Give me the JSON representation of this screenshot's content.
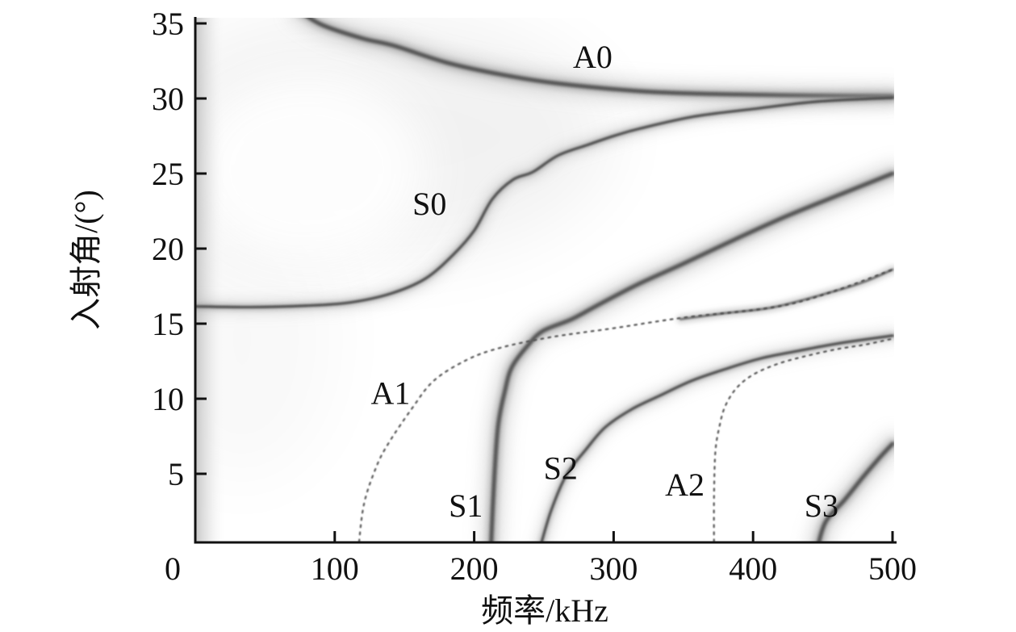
{
  "figure": {
    "background": "#ffffff",
    "ink_color": "#111111"
  },
  "chart_data": {
    "type": "heatmap",
    "subtype": "grayscale reflection-coefficient minima map showing leaky Lamb wave dispersion curves (incidence angle vs frequency)",
    "title": "",
    "xlabel": "频率/kHz",
    "ylabel": "入射角/(°)",
    "xlim": [
      0,
      500
    ],
    "ylim": [
      0,
      35
    ],
    "x_ticks": [
      0,
      100,
      200,
      300,
      400,
      500
    ],
    "y_ticks": [
      5,
      10,
      15,
      20,
      25,
      30,
      35
    ],
    "grid": false,
    "legend": "none (modes annotated inline)",
    "series": [
      {
        "name": "A0",
        "label": "A0",
        "label_pos": [
          285,
          32.8
        ],
        "line": "band-heavy",
        "points": [
          [
            75,
            35.8
          ],
          [
            91,
            34.9
          ],
          [
            120,
            34.0
          ],
          [
            143,
            33.5
          ],
          [
            180,
            32.4
          ],
          [
            219,
            31.6
          ],
          [
            260,
            31.0
          ],
          [
            317,
            30.5
          ],
          [
            370,
            30.3
          ],
          [
            433,
            30.2
          ],
          [
            500,
            30.15
          ]
        ]
      },
      {
        "name": "S0",
        "label": "S0",
        "label_pos": [
          168,
          23.0
        ],
        "line": "band-medium",
        "points": [
          [
            0.5,
            16.15
          ],
          [
            40,
            16.1
          ],
          [
            80,
            16.2
          ],
          [
            110,
            16.4
          ],
          [
            140,
            17.0
          ],
          [
            165,
            18.0
          ],
          [
            185,
            19.6
          ],
          [
            200,
            21.2
          ],
          [
            213,
            23.3
          ],
          [
            228,
            24.6
          ],
          [
            242,
            25.1
          ],
          [
            260,
            26.2
          ],
          [
            281,
            26.9
          ],
          [
            300,
            27.5
          ],
          [
            319,
            28.0
          ],
          [
            358,
            28.8
          ],
          [
            400,
            29.3
          ],
          [
            447,
            29.8
          ],
          [
            500,
            30.05
          ]
        ]
      },
      {
        "name": "S1",
        "label": "S1",
        "label_pos": [
          194,
          2.9
        ],
        "line": "band-heavy",
        "points": [
          [
            212,
            0
          ],
          [
            214,
            4.0
          ],
          [
            217,
            8.1
          ],
          [
            222,
            10.5
          ],
          [
            227,
            12.1
          ],
          [
            238,
            13.5
          ],
          [
            249,
            14.5
          ],
          [
            270,
            15.3
          ],
          [
            290,
            16.3
          ],
          [
            317,
            17.6
          ],
          [
            350,
            19.0
          ],
          [
            389,
            20.7
          ],
          [
            425,
            22.2
          ],
          [
            465,
            23.7
          ],
          [
            500,
            25.0
          ]
        ]
      },
      {
        "name": "S2",
        "label": "S2",
        "label_pos": [
          262,
          5.4
        ],
        "line": "band-medium",
        "points": [
          [
            247,
            0
          ],
          [
            255,
            2.5
          ],
          [
            266,
            4.9
          ],
          [
            280,
            6.6
          ],
          [
            294,
            8.1
          ],
          [
            313,
            9.3
          ],
          [
            333,
            10.2
          ],
          [
            356,
            11.2
          ],
          [
            381,
            12.0
          ],
          [
            406,
            12.7
          ],
          [
            433,
            13.2
          ],
          [
            462,
            13.7
          ],
          [
            500,
            14.2
          ]
        ]
      },
      {
        "name": "S3",
        "label": "S3",
        "label_pos": [
          449,
          2.9
        ],
        "line": "band-heavy",
        "points": [
          [
            446,
            0
          ],
          [
            452,
            1.8
          ],
          [
            466,
            3.3
          ],
          [
            479,
            4.8
          ],
          [
            491,
            6.1
          ],
          [
            500,
            7.0
          ]
        ]
      },
      {
        "name": "A1_high_band",
        "label": "",
        "label_pos": null,
        "line": "band-soft",
        "points": [
          [
            348,
            15.3
          ],
          [
            380,
            15.7
          ],
          [
            415,
            16.1
          ],
          [
            456,
            17.1
          ],
          [
            480,
            17.8
          ],
          [
            500,
            18.6
          ]
        ]
      },
      {
        "name": "A1",
        "label": "A1",
        "label_pos": [
          140,
          10.4
        ],
        "line": "dotted",
        "points": [
          [
            117,
            0
          ],
          [
            121,
            3.0
          ],
          [
            130,
            5.5
          ],
          [
            139,
            7.1
          ],
          [
            155,
            9.3
          ],
          [
            171,
            11.2
          ],
          [
            195,
            12.6
          ],
          [
            219,
            13.4
          ],
          [
            255,
            14.1
          ],
          [
            300,
            14.7
          ],
          [
            350,
            15.4
          ],
          [
            415,
            16.1
          ],
          [
            456,
            17.1
          ],
          [
            500,
            18.6
          ]
        ]
      },
      {
        "name": "A2",
        "label": "A2",
        "label_pos": [
          351,
          4.3
        ],
        "line": "dotted",
        "points": [
          [
            372,
            0
          ],
          [
            372,
            3.5
          ],
          [
            373,
            6.5
          ],
          [
            376,
            8.2
          ],
          [
            380,
            9.5
          ],
          [
            388,
            10.7
          ],
          [
            400,
            11.6
          ],
          [
            417,
            12.3
          ],
          [
            436,
            12.8
          ],
          [
            460,
            13.3
          ],
          [
            480,
            13.6
          ],
          [
            500,
            14.0
          ]
        ]
      }
    ]
  }
}
